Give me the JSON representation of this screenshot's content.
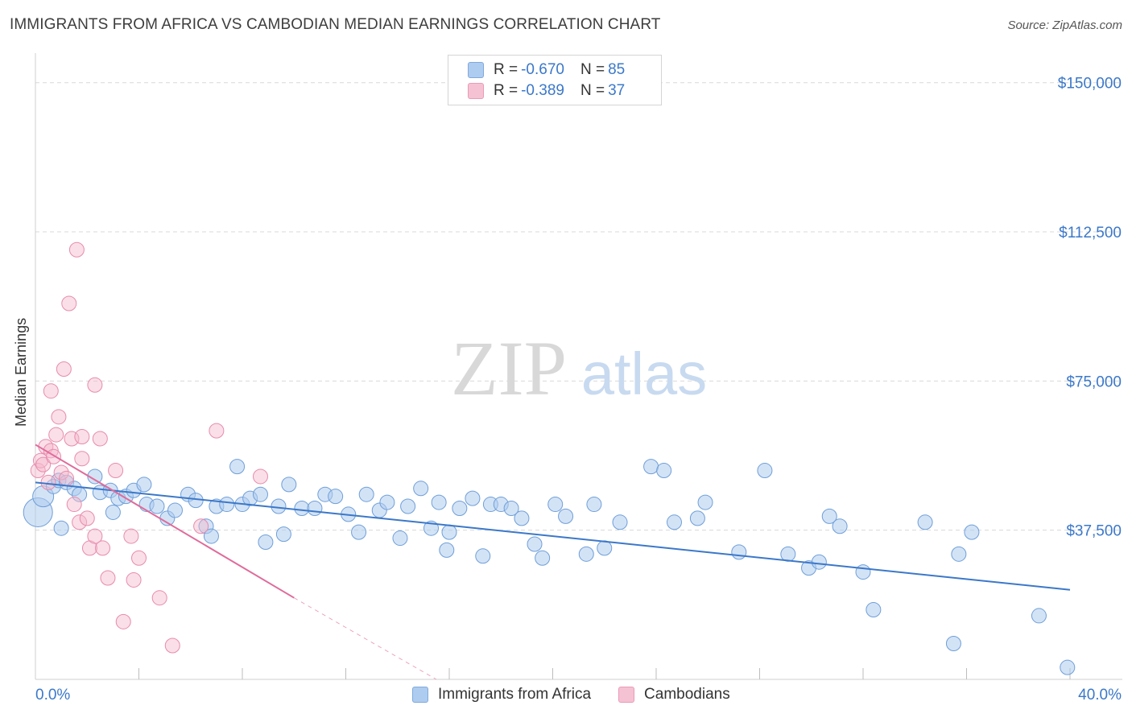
{
  "title": "IMMIGRANTS FROM AFRICA VS CAMBODIAN MEDIAN EARNINGS CORRELATION CHART",
  "source": "Source: ZipAtlas.com",
  "watermark": {
    "zip": "ZIP",
    "atlas": "atlas"
  },
  "colors": {
    "blue": "#3b78c9",
    "blue_fill": "#aeccef",
    "pink": "#e06b9a",
    "pink_fill": "#f5b9cc",
    "grid": "#d9d9d9",
    "axis_text": "#3b78c9"
  },
  "legend": {
    "rows": [
      {
        "r_label": "R = ",
        "r_value": "-0.670",
        "n_label": "N = ",
        "n_value": "85"
      },
      {
        "r_label": "R = ",
        "r_value": "-0.389",
        "n_label": "N = ",
        "n_value": "37"
      }
    ]
  },
  "bottom_legend": [
    "Immigrants from Africa",
    "Cambodians"
  ],
  "chart_data": {
    "type": "scatter",
    "title": "IMMIGRANTS FROM AFRICA VS CAMBODIAN MEDIAN EARNINGS CORRELATION CHART",
    "ylabel": "Median Earnings",
    "xlim": [
      0,
      40
    ],
    "ylim": [
      0,
      155000
    ],
    "x_tick_labels": [
      "0.0%",
      "40.0%"
    ],
    "y_ticks": [
      37500,
      75000,
      112500,
      150000
    ],
    "y_tick_labels": [
      "$37,500",
      "$75,000",
      "$112,500",
      "$150,000"
    ],
    "grid": "horizontal dashed",
    "legend_position": "top-center",
    "series": [
      {
        "name": "Immigrants from Africa",
        "color": "#3b78c9",
        "r": -0.67,
        "n": 85,
        "trend": {
          "x": [
            0,
            40
          ],
          "y": [
            49500,
            22500
          ]
        },
        "points": [
          [
            0.1,
            42000
          ],
          [
            0.3,
            46000
          ],
          [
            0.7,
            48500
          ],
          [
            0.9,
            50000
          ],
          [
            1.2,
            49500
          ],
          [
            1.5,
            48000
          ],
          [
            1.7,
            46500
          ],
          [
            2.3,
            51000
          ],
          [
            2.5,
            47000
          ],
          [
            2.9,
            47500
          ],
          [
            3.2,
            45500
          ],
          [
            3.5,
            46000
          ],
          [
            3.8,
            47500
          ],
          [
            4.2,
            49000
          ],
          [
            4.3,
            44000
          ],
          [
            4.7,
            43500
          ],
          [
            5.1,
            40500
          ],
          [
            5.4,
            42500
          ],
          [
            5.9,
            46500
          ],
          [
            6.2,
            45000
          ],
          [
            6.6,
            38500
          ],
          [
            7.0,
            43500
          ],
          [
            7.4,
            44000
          ],
          [
            7.8,
            53500
          ],
          [
            8.0,
            44000
          ],
          [
            8.3,
            45500
          ],
          [
            8.7,
            46500
          ],
          [
            8.9,
            34500
          ],
          [
            9.4,
            43500
          ],
          [
            9.6,
            36500
          ],
          [
            9.8,
            49000
          ],
          [
            10.3,
            43000
          ],
          [
            10.8,
            43000
          ],
          [
            11.2,
            46500
          ],
          [
            11.6,
            46000
          ],
          [
            12.1,
            41500
          ],
          [
            12.5,
            37000
          ],
          [
            12.8,
            46500
          ],
          [
            13.3,
            42500
          ],
          [
            13.6,
            44500
          ],
          [
            14.1,
            35500
          ],
          [
            14.4,
            43500
          ],
          [
            14.9,
            48000
          ],
          [
            15.3,
            38000
          ],
          [
            15.6,
            44500
          ],
          [
            15.9,
            32500
          ],
          [
            16.4,
            43000
          ],
          [
            16.9,
            45500
          ],
          [
            17.3,
            31000
          ],
          [
            17.6,
            44000
          ],
          [
            18.0,
            44000
          ],
          [
            18.4,
            43000
          ],
          [
            18.8,
            40500
          ],
          [
            19.3,
            34000
          ],
          [
            19.6,
            30500
          ],
          [
            20.1,
            44000
          ],
          [
            20.5,
            41000
          ],
          [
            21.3,
            31500
          ],
          [
            21.6,
            44000
          ],
          [
            22.6,
            39500
          ],
          [
            23.8,
            53500
          ],
          [
            24.3,
            52500
          ],
          [
            24.7,
            39500
          ],
          [
            25.6,
            40500
          ],
          [
            25.9,
            44500
          ],
          [
            27.2,
            32000
          ],
          [
            28.2,
            52500
          ],
          [
            29.1,
            31500
          ],
          [
            29.9,
            28000
          ],
          [
            30.7,
            41000
          ],
          [
            31.1,
            38500
          ],
          [
            30.3,
            29500
          ],
          [
            32.0,
            27000
          ],
          [
            32.4,
            17500
          ],
          [
            34.4,
            39500
          ],
          [
            35.5,
            9000
          ],
          [
            35.7,
            31500
          ],
          [
            36.2,
            37000
          ],
          [
            38.8,
            16000
          ],
          [
            39.9,
            3000
          ],
          [
            1.0,
            38000
          ],
          [
            3.0,
            42000
          ],
          [
            6.8,
            36000
          ],
          [
            16.0,
            37000
          ],
          [
            22.0,
            33000
          ]
        ],
        "sizes": {
          "0": 18,
          "1": 13
        }
      },
      {
        "name": "Cambodians",
        "color": "#e06b9a",
        "r": -0.389,
        "n": 37,
        "trend": {
          "x": [
            0,
            10
          ],
          "y": [
            59000,
            20500
          ]
        },
        "trend_dashed": {
          "x": [
            10,
            15.5
          ],
          "y": [
            20500,
            0
          ]
        },
        "points": [
          [
            0.1,
            52500
          ],
          [
            0.2,
            55000
          ],
          [
            0.3,
            54000
          ],
          [
            0.4,
            58500
          ],
          [
            0.5,
            49500
          ],
          [
            0.6,
            57500
          ],
          [
            0.6,
            72500
          ],
          [
            0.7,
            56000
          ],
          [
            0.8,
            61500
          ],
          [
            0.9,
            66000
          ],
          [
            1.0,
            52000
          ],
          [
            1.1,
            78000
          ],
          [
            1.2,
            50500
          ],
          [
            1.3,
            94500
          ],
          [
            1.4,
            60500
          ],
          [
            1.5,
            44000
          ],
          [
            1.6,
            108000
          ],
          [
            1.7,
            39500
          ],
          [
            1.8,
            55500
          ],
          [
            1.8,
            61000
          ],
          [
            2.0,
            40500
          ],
          [
            2.1,
            33000
          ],
          [
            2.3,
            36000
          ],
          [
            2.3,
            74000
          ],
          [
            2.5,
            60500
          ],
          [
            2.6,
            33000
          ],
          [
            2.8,
            25500
          ],
          [
            3.1,
            52500
          ],
          [
            3.4,
            14500
          ],
          [
            3.7,
            36000
          ],
          [
            3.8,
            25000
          ],
          [
            4.0,
            30500
          ],
          [
            4.8,
            20500
          ],
          [
            5.3,
            8500
          ],
          [
            6.4,
            38500
          ],
          [
            7.0,
            62500
          ],
          [
            8.7,
            51000
          ]
        ]
      }
    ]
  }
}
